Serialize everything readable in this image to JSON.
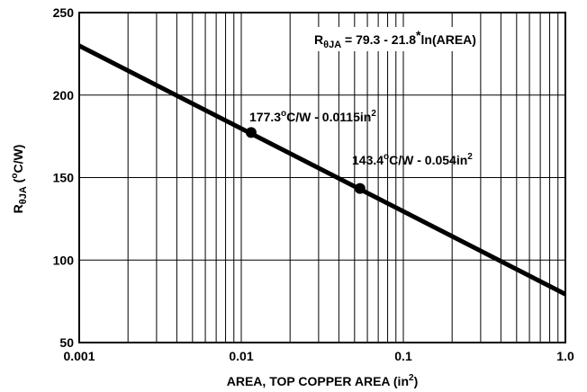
{
  "chart_data": {
    "type": "line",
    "x_scale": "log",
    "x": [
      0.001,
      1.0
    ],
    "series": [
      {
        "values": [
          229.9,
          79.3
        ]
      }
    ],
    "xlim": [
      0.001,
      1.0
    ],
    "ylim": [
      50,
      250
    ],
    "x_ticks": [
      {
        "value": 0.001,
        "label": "0.001"
      },
      {
        "value": 0.01,
        "label": "0.01"
      },
      {
        "value": 0.1,
        "label": "0.1"
      },
      {
        "value": 1.0,
        "label": "1.0"
      }
    ],
    "y_ticks": [
      {
        "value": 50,
        "label": "50"
      },
      {
        "value": 100,
        "label": "100"
      },
      {
        "value": 150,
        "label": "150"
      },
      {
        "value": 200,
        "label": "200"
      },
      {
        "value": 250,
        "label": "250"
      }
    ],
    "xlabel": {
      "main": "AREA, TOP COPPER AREA (in",
      "sup": "2",
      "tail": ")"
    },
    "ylabel": {
      "main": "R",
      "sub": "θJA",
      "rest": " (",
      "sup": "o",
      "tail": "C/W)"
    },
    "grid": true,
    "equation": {
      "pre": "R",
      "sub": "θJA",
      "mid": " = 79.3 - 21.8",
      "sup": "*",
      "post": "ln(AREA)"
    },
    "points": [
      {
        "x": 0.0115,
        "y": 177.3,
        "label": {
          "a": "177.3",
          "sup1": "o",
          "b": "C/W - 0.0115in",
          "sup2": "2"
        }
      },
      {
        "x": 0.054,
        "y": 143.4,
        "label": {
          "a": "143.4",
          "sup1": "o",
          "b": "C/W - 0.054in",
          "sup2": "2"
        }
      }
    ]
  }
}
